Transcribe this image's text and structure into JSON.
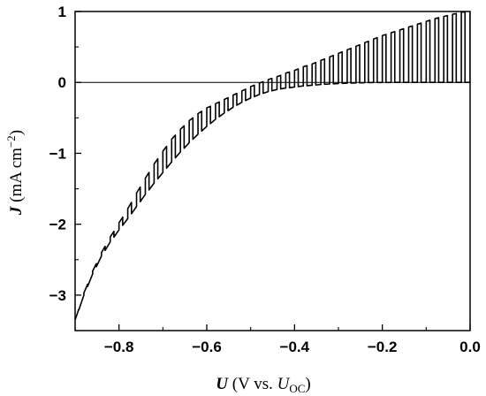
{
  "chart_data": {
    "type": "line",
    "title": "",
    "xlabel": {
      "symbol": "U",
      "text": " (V vs. ",
      "sub_symbol": "U",
      "sub": "OC",
      "close": ")"
    },
    "ylabel": {
      "symbol": "J",
      "text": " (mA cm",
      "sup": "−2",
      "close": ")"
    },
    "xlim": [
      -0.9,
      0.0
    ],
    "ylim": [
      -3.5,
      1.0
    ],
    "xticks": [
      -0.8,
      -0.6,
      -0.4,
      -0.2,
      0.0
    ],
    "xtick_labels": [
      "−0.8",
      "−0.6",
      "−0.4",
      "−0.2",
      "0.0"
    ],
    "yticks": [
      -3,
      -2,
      -1,
      0,
      1
    ],
    "ytick_labels": [
      "−3",
      "−2",
      "−1",
      "0",
      "1"
    ],
    "grid": false,
    "reference_line": 0,
    "series": [
      {
        "x": [
          -0.9,
          -0.88,
          -0.86,
          -0.84,
          -0.82,
          -0.8,
          -0.78,
          -0.76,
          -0.74,
          -0.72,
          -0.7,
          -0.68,
          -0.66,
          -0.64,
          -0.62,
          -0.6,
          -0.58,
          -0.56,
          -0.54,
          -0.52,
          -0.5,
          -0.48,
          -0.46,
          -0.44,
          -0.42,
          -0.4,
          -0.38,
          -0.36,
          -0.34,
          -0.32,
          -0.3,
          -0.28,
          -0.26,
          -0.24,
          -0.22,
          -0.2,
          -0.18,
          -0.16,
          -0.14,
          -0.12,
          -0.1,
          -0.08,
          -0.06,
          -0.04,
          -0.02,
          0.0
        ],
        "dark_y": [
          -3.35,
          -3.0,
          -2.7,
          -2.45,
          -2.25,
          -2.08,
          -1.92,
          -1.75,
          -1.58,
          -1.42,
          -1.27,
          -1.12,
          -0.98,
          -0.85,
          -0.73,
          -0.62,
          -0.52,
          -0.43,
          -0.35,
          -0.28,
          -0.22,
          -0.17,
          -0.13,
          -0.1,
          -0.08,
          -0.065,
          -0.05,
          -0.04,
          -0.03,
          -0.022,
          -0.016,
          -0.011,
          -0.007,
          -0.004,
          -0.002,
          -0.001,
          0.0,
          0.0,
          0.0,
          0.0,
          0.0,
          0.0,
          0.0,
          0.0,
          0.0,
          0.0
        ],
        "light_y": [
          -3.35,
          -2.97,
          -2.66,
          -2.4,
          -2.18,
          -1.98,
          -1.78,
          -1.56,
          -1.35,
          -1.15,
          -0.97,
          -0.8,
          -0.66,
          -0.54,
          -0.44,
          -0.36,
          -0.3,
          -0.24,
          -0.18,
          -0.12,
          -0.06,
          -0.01,
          0.04,
          0.08,
          0.13,
          0.17,
          0.22,
          0.26,
          0.31,
          0.36,
          0.41,
          0.46,
          0.51,
          0.56,
          0.61,
          0.66,
          0.7,
          0.74,
          0.78,
          0.82,
          0.86,
          0.9,
          0.93,
          0.96,
          0.99,
          1.0
        ]
      }
    ]
  }
}
